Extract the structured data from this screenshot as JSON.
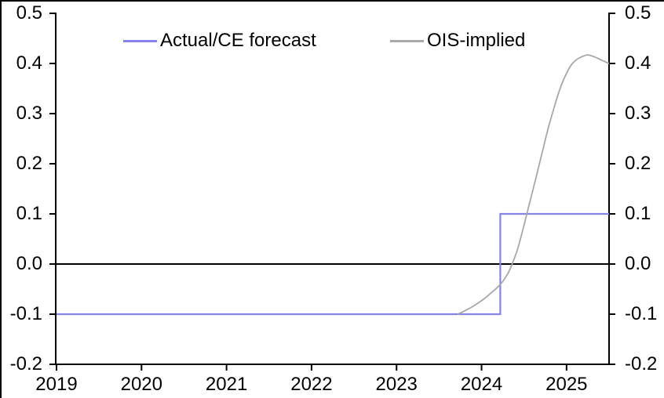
{
  "window": {
    "background": "#ffffff"
  },
  "legend": [
    {
      "label": "Actual/CE forecast",
      "color": "#8582e8"
    },
    {
      "label": "OIS-implied",
      "color": "#a8a8a8"
    }
  ],
  "chart_data": {
    "type": "line",
    "title": "",
    "xlabel": "",
    "ylabel": "",
    "xlim": [
      2019,
      2025.5
    ],
    "ylim": [
      -0.2,
      0.5
    ],
    "baseline": 0,
    "grid": false,
    "dual_y_axis": true,
    "legend_position": "top-center-inside",
    "axis_color": "#000000",
    "x_ticks": [
      2019,
      2020,
      2021,
      2022,
      2023,
      2024,
      2025
    ],
    "x_tick_labels": [
      "2019",
      "2020",
      "2021",
      "2022",
      "2023",
      "2024",
      "2025"
    ],
    "y_ticks": [
      -0.2,
      -0.1,
      0,
      0.1,
      0.2,
      0.3,
      0.4,
      0.5
    ],
    "y_tick_labels": [
      "-0.2",
      "-0.1",
      "0.0",
      "0.1",
      "0.2",
      "0.3",
      "0.4",
      "0.5"
    ],
    "series": [
      {
        "name": "Actual/CE forecast",
        "color": "#8582e8",
        "width": 2.2,
        "smooth": false,
        "points": [
          [
            2019,
            -0.1
          ],
          [
            2024.22,
            -0.1
          ],
          [
            2024.22,
            0.1
          ],
          [
            2025.5,
            0.1
          ]
        ]
      },
      {
        "name": "OIS-implied",
        "color": "#a8a8a8",
        "width": 1.8,
        "smooth": true,
        "points": [
          [
            2023.72,
            -0.1
          ],
          [
            2023.83,
            -0.091
          ],
          [
            2023.94,
            -0.08
          ],
          [
            2024.04,
            -0.068
          ],
          [
            2024.13,
            -0.055
          ],
          [
            2024.22,
            -0.041
          ],
          [
            2024.3,
            -0.022
          ],
          [
            2024.36,
            0
          ],
          [
            2024.43,
            0.033
          ],
          [
            2024.5,
            0.078
          ],
          [
            2024.57,
            0.125
          ],
          [
            2024.64,
            0.172
          ],
          [
            2024.71,
            0.22
          ],
          [
            2024.78,
            0.268
          ],
          [
            2024.85,
            0.31
          ],
          [
            2024.92,
            0.348
          ],
          [
            2024.99,
            0.377
          ],
          [
            2025.06,
            0.398
          ],
          [
            2025.13,
            0.409
          ],
          [
            2025.19,
            0.414
          ],
          [
            2025.25,
            0.417
          ],
          [
            2025.33,
            0.413
          ],
          [
            2025.42,
            0.406
          ],
          [
            2025.5,
            0.4
          ]
        ]
      }
    ]
  }
}
